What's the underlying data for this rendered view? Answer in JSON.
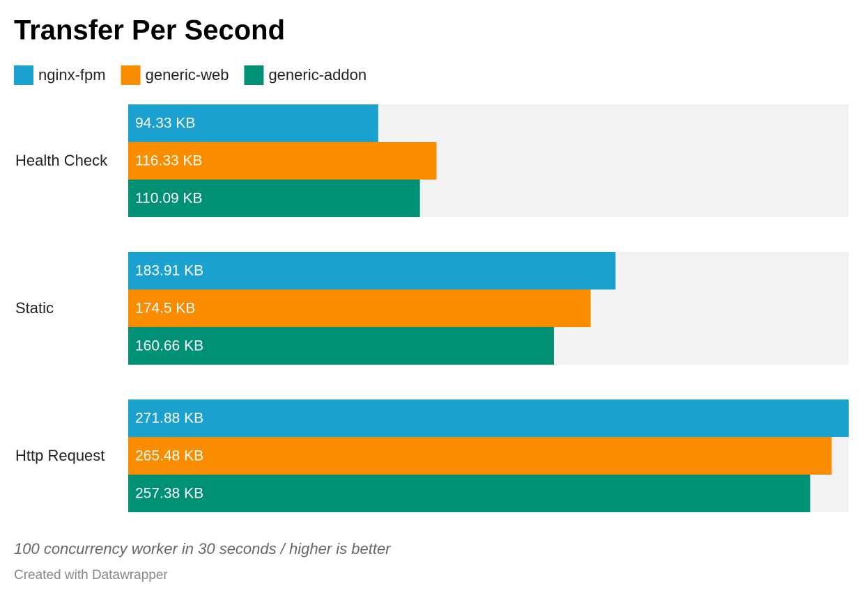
{
  "chart_data": {
    "type": "grouped-bar-horizontal",
    "title": "Transfer Per Second",
    "categories": [
      "Health Check",
      "Static",
      "Http Request"
    ],
    "series": [
      {
        "name": "nginx-fpm",
        "color": "#1aa1cf",
        "values": [
          94.33,
          183.91,
          271.88
        ],
        "value_labels": [
          "94.33 KB",
          "183.91 KB",
          "271.88 KB"
        ]
      },
      {
        "name": "generic-web",
        "color": "#fa8c00",
        "values": [
          116.33,
          174.5,
          265.48
        ],
        "value_labels": [
          "116.33 KB",
          "174.5 KB",
          "265.48 KB"
        ]
      },
      {
        "name": "generic-addon",
        "color": "#009175",
        "values": [
          110.09,
          160.66,
          257.38
        ],
        "value_labels": [
          "110.09 KB",
          "160.66 KB",
          "257.38 KB"
        ]
      }
    ],
    "xlim": [
      0,
      271.88
    ],
    "background_color": "#f2f2f2",
    "notes": "100 concurrency worker in 30 seconds / higher is better",
    "credit": "Created with Datawrapper"
  }
}
